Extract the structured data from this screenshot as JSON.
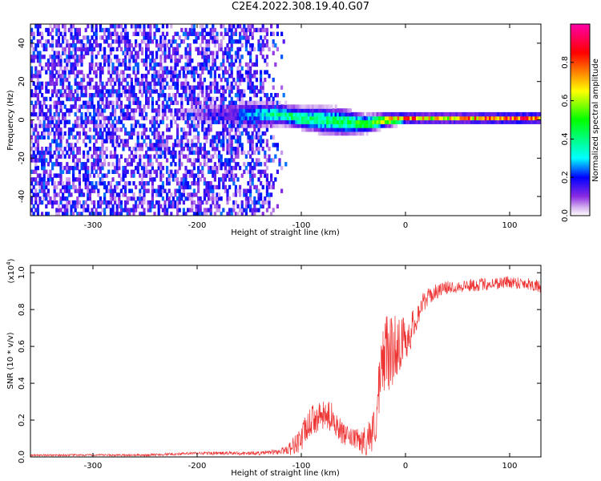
{
  "title": "C2E4.2022.308.19.40.G07",
  "chart_data": [
    {
      "type": "heatmap",
      "xlabel": "Height of straight line (km)",
      "ylabel": "Frequency (Hz)",
      "xlim": [
        -360,
        130
      ],
      "ylim": [
        -50,
        50
      ],
      "x_ticks": [
        -300,
        -200,
        -100,
        0,
        100
      ],
      "x_tick_labels": [
        "-300",
        "-200",
        "-100",
        "0",
        "100"
      ],
      "y_ticks": [
        -40,
        -20,
        0,
        20,
        40
      ],
      "y_tick_labels": [
        "-40",
        "-20",
        "0",
        "20",
        "40"
      ],
      "colorbar": {
        "label": "Normalized spectral amplitude",
        "range": [
          0,
          1
        ],
        "ticks": [
          0.0,
          0.2,
          0.4,
          0.6,
          0.8
        ],
        "tick_labels": [
          "0.0",
          "0.2",
          "0.4",
          "0.6",
          "0.8"
        ],
        "colormap": [
          "#ffffff",
          "#8a2be2",
          "#0000ff",
          "#00ffff",
          "#00ff00",
          "#ffff00",
          "#ff0000",
          "#ff00aa"
        ]
      },
      "noise_region_x": [
        -360,
        -125
      ],
      "noise_amplitude": 0.3,
      "signal_track": {
        "x": [
          -160,
          -120,
          -100,
          -80,
          -60,
          -40,
          -20,
          0,
          20,
          60,
          100,
          130
        ],
        "frequency": [
          3,
          3,
          1,
          0,
          -1,
          -2,
          0,
          1,
          1,
          1,
          1,
          1
        ],
        "halfwidth_hz": [
          6,
          5,
          5,
          6,
          6,
          4,
          3,
          2,
          2,
          2,
          2,
          2
        ],
        "peak_amplitude": [
          0.25,
          0.4,
          0.45,
          0.45,
          0.45,
          0.5,
          0.75,
          0.8,
          0.65,
          0.7,
          0.85,
          0.8
        ]
      },
      "grid": false
    },
    {
      "type": "line",
      "xlabel": "Height of straight line (km)",
      "ylabel": "SNR (10 * v/v)",
      "y_multiplier_label": "(x10",
      "y_multiplier_exponent": "4",
      "y_multiplier_close": ")",
      "xlim": [
        -360,
        130
      ],
      "ylim": [
        0,
        1.04
      ],
      "x_ticks": [
        -300,
        -200,
        -100,
        0,
        100
      ],
      "x_tick_labels": [
        "-300",
        "-200",
        "-100",
        "0",
        "100"
      ],
      "y_ticks": [
        0.0,
        0.2,
        0.4,
        0.6,
        0.8,
        1.0
      ],
      "y_tick_labels": [
        "0.0",
        "0.2",
        "0.4",
        "0.6",
        "0.8",
        "1.0"
      ],
      "series": [
        {
          "color": "#ee3333",
          "x": [
            -360,
            -300,
            -250,
            -200,
            -160,
            -140,
            -120,
            -110,
            -100,
            -90,
            -80,
            -70,
            -60,
            -50,
            -40,
            -30,
            -25,
            -20,
            -15,
            -10,
            -5,
            0,
            5,
            10,
            15,
            20,
            30,
            40,
            60,
            80,
            100,
            120,
            130
          ],
          "values": [
            0.01,
            0.01,
            0.01,
            0.02,
            0.02,
            0.02,
            0.03,
            0.05,
            0.1,
            0.2,
            0.22,
            0.22,
            0.12,
            0.1,
            0.08,
            0.15,
            0.35,
            0.6,
            0.55,
            0.6,
            0.62,
            0.64,
            0.68,
            0.75,
            0.82,
            0.86,
            0.9,
            0.92,
            0.93,
            0.94,
            0.95,
            0.94,
            0.92
          ],
          "noise": [
            0.005,
            0.005,
            0.006,
            0.008,
            0.01,
            0.01,
            0.015,
            0.04,
            0.08,
            0.08,
            0.08,
            0.08,
            0.06,
            0.05,
            0.08,
            0.12,
            0.2,
            0.22,
            0.2,
            0.18,
            0.15,
            0.12,
            0.1,
            0.08,
            0.06,
            0.05,
            0.04,
            0.035,
            0.035,
            0.035,
            0.035,
            0.035,
            0.035
          ]
        }
      ],
      "grid": false
    }
  ]
}
